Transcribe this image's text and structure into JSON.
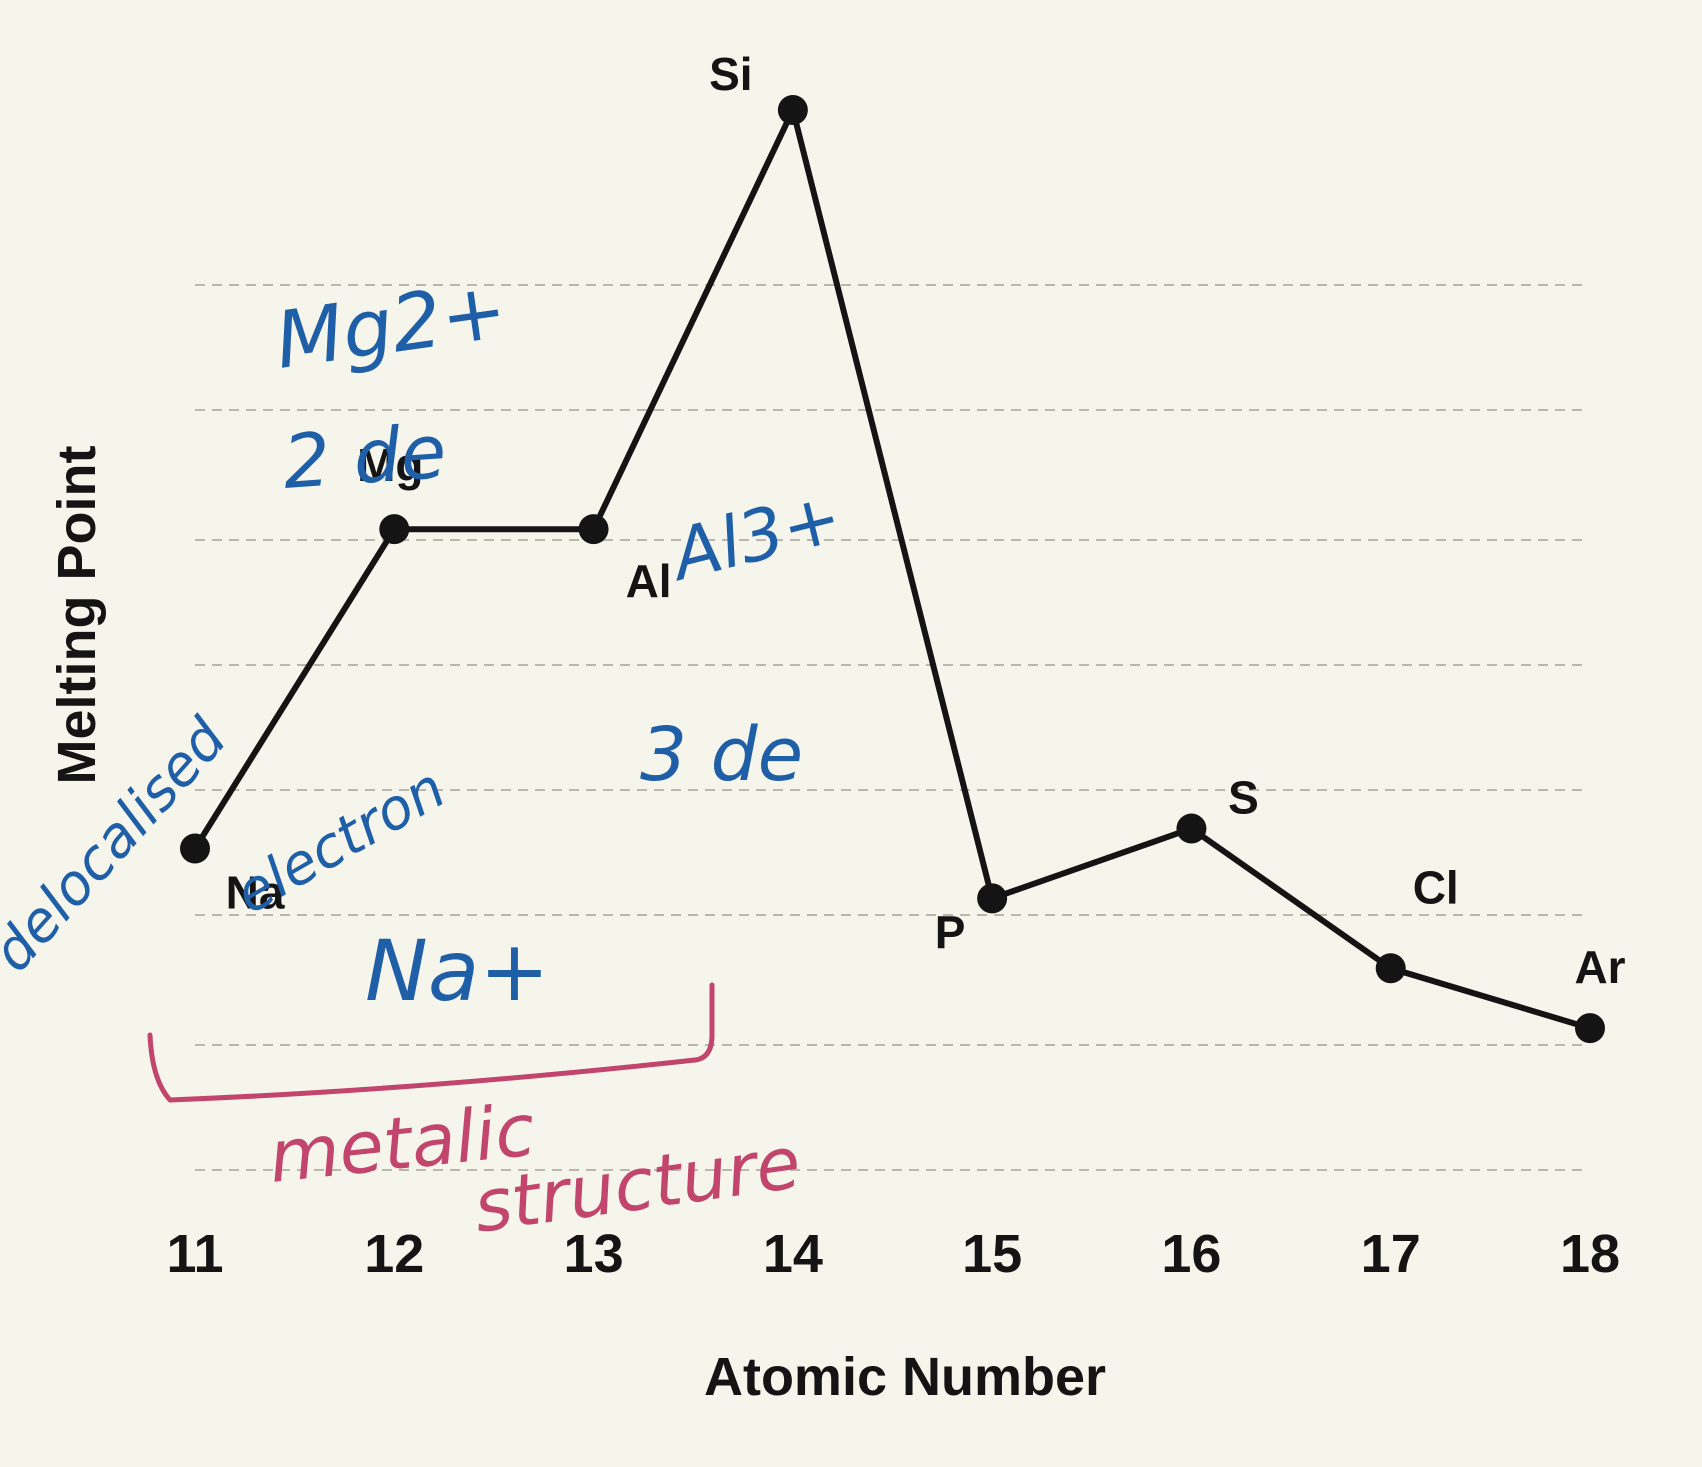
{
  "chart_data": {
    "type": "line",
    "title": "",
    "xlabel": "Atomic Number",
    "ylabel": "Melting Point",
    "x": [
      11,
      12,
      13,
      14,
      15,
      16,
      17,
      18
    ],
    "tick_labels": [
      "11",
      "12",
      "13",
      "14",
      "15",
      "16",
      "17",
      "18"
    ],
    "point_labels": [
      "Na",
      "Mg",
      "Al",
      "Si",
      "P",
      "S",
      "Cl",
      "Ar"
    ],
    "values": [
      26,
      58,
      58,
      100,
      21,
      28,
      14,
      8
    ],
    "ylim": [
      0,
      100
    ],
    "grid": "horizontal dashed",
    "series_color": "#141414",
    "annotations": {
      "handwritten_blue": [
        "Mg2+",
        "2 de",
        "Al3+",
        "3 de",
        "delocalised",
        "electron",
        "Na+"
      ],
      "handwritten_pink": [
        "metalic",
        "structure"
      ],
      "blue_ink_color": "#1f5fa8",
      "pink_ink_color": "#c2456d"
    }
  }
}
